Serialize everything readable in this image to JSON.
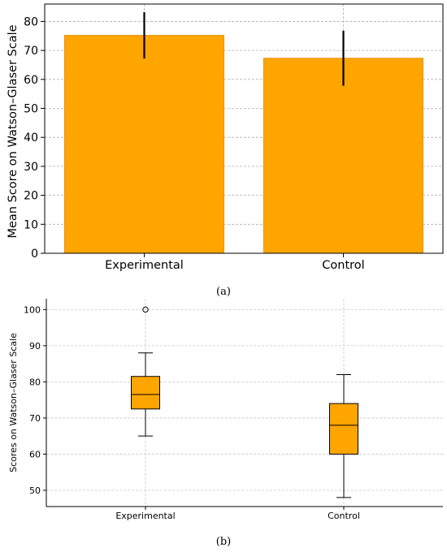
{
  "chart_data": [
    {
      "type": "bar",
      "categories": [
        "Experimental",
        "Control"
      ],
      "values": [
        75.2,
        67.3
      ],
      "error": [
        8.0,
        9.5
      ],
      "ylabel": "Mean Score on Watson–Glaser Scale",
      "xlabel": "",
      "ylim": [
        0,
        86
      ],
      "yticks": [
        0,
        10,
        20,
        30,
        40,
        50,
        60,
        70,
        80
      ],
      "grid": true,
      "bar_color": "#FFA500",
      "error_color": "#000000",
      "caption": "(a)"
    },
    {
      "type": "box",
      "categories": [
        "Experimental",
        "Control"
      ],
      "boxes": [
        {
          "whisker_low": 65,
          "q1": 72.5,
          "median": 76.5,
          "q3": 81.5,
          "whisker_high": 88,
          "outliers": [
            100
          ]
        },
        {
          "whisker_low": 48,
          "q1": 60,
          "median": 68,
          "q3": 74,
          "whisker_high": 82,
          "outliers": []
        }
      ],
      "ylabel": "Scores on Watson–Glaser Scale",
      "xlabel": "",
      "ylim": [
        45.5,
        103
      ],
      "yticks": [
        50,
        60,
        70,
        80,
        90,
        100
      ],
      "grid": true,
      "box_color": "#FFA500",
      "caption": "(b)"
    }
  ]
}
